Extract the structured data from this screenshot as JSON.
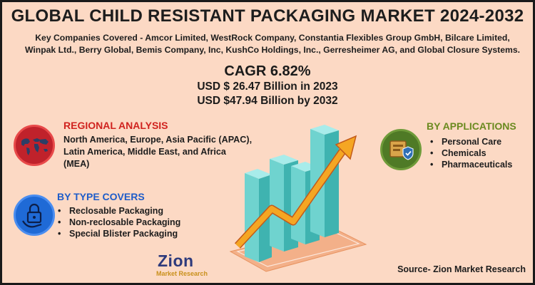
{
  "title": "GLOBAL CHILD RESISTANT PACKAGING MARKET 2024-2032",
  "companies": "Key Companies Covered - Amcor Limited, WestRock Company, Constantia Flexibles Group GmbH, Bilcare Limited, Winpak Ltd., Berry Global, Bemis Company, Inc, KushCo Holdings, Inc., Gerresheimer AG, and Global Closure Systems.",
  "cagr": "CAGR 6.82%",
  "usd_2023": "USD $ 26.47 Billion in 2023",
  "usd_2032": "USD $47.94 Billion  by 2032",
  "regional": {
    "heading": "REGIONAL ANALYSIS",
    "text": "North America, Europe, Asia Pacific (APAC), Latin America, Middle East, and Africa (MEA)"
  },
  "type_covers": {
    "heading": "BY TYPE COVERS",
    "items": [
      "Reclosable Packaging",
      "Non-reclosable Packaging",
      "Special Blister Packaging"
    ]
  },
  "applications": {
    "heading": "BY APPLICATIONS",
    "items": [
      "Personal Care",
      "Chemicals",
      "Pharmaceuticals"
    ]
  },
  "logo": {
    "word": "Zion",
    "sub": "Market Research"
  },
  "source": "Source- Zion Market Research",
  "colors": {
    "background": "#fcd9c4",
    "regional_red": "#d0231f",
    "type_blue": "#1e5cc9",
    "applications_green": "#6a8a1f",
    "bar_teal": "#6fd3cf",
    "arrow_orange": "#f5a623"
  },
  "icons": {
    "regional": "world-map-icon",
    "type": "lock-hand-icon",
    "applications": "package-shield-icon"
  }
}
